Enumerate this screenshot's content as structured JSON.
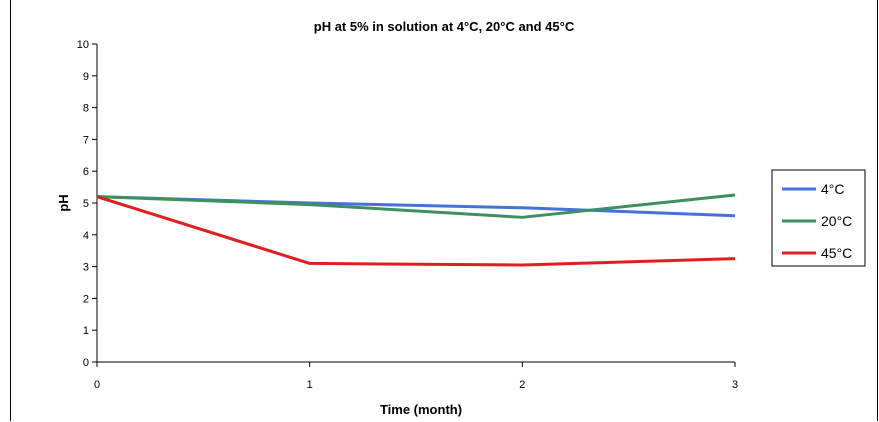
{
  "chart_data": {
    "type": "line",
    "title": "pH at 5% in solution at 4°C, 20°C and 45°C",
    "xlabel": "Time (month)",
    "ylabel": "pH",
    "x": [
      0,
      1,
      2,
      3
    ],
    "xlim": [
      0,
      3
    ],
    "ylim": [
      0,
      10
    ],
    "xticks": [
      "0",
      "1",
      "2",
      "3"
    ],
    "yticks": [
      "0",
      "1",
      "2",
      "3",
      "4",
      "5",
      "6",
      "7",
      "8",
      "9",
      "10"
    ],
    "grid": false,
    "legend_position": "right",
    "series": [
      {
        "name": "4°C",
        "color": "#4472d8",
        "values": [
          5.2,
          5.0,
          4.85,
          4.6
        ]
      },
      {
        "name": "20°C",
        "color": "#3d9160",
        "values": [
          5.2,
          4.95,
          4.55,
          5.25
        ]
      },
      {
        "name": "45°C",
        "color": "#e01e1e",
        "values": [
          5.2,
          3.1,
          3.05,
          3.25
        ]
      }
    ]
  }
}
